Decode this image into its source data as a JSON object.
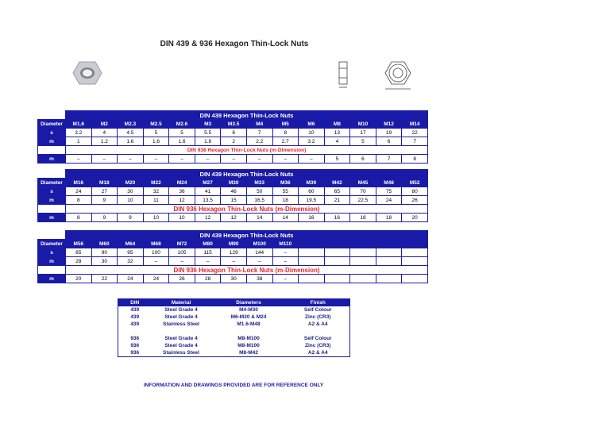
{
  "title": "DIN 439 & 936 Hexagon Thin-Lock Nuts",
  "tables": [
    {
      "title": "DIN 439 Hexagon Thin-Lock Nuts",
      "diameter_label": "Diameter",
      "diameters": [
        "M1.6",
        "M2",
        "M2.3",
        "M2.5",
        "M2.6",
        "M3",
        "M3.5",
        "M4",
        "M5",
        "M6",
        "M8",
        "M10",
        "M12",
        "M14"
      ],
      "rows": [
        {
          "label": "s",
          "values": [
            "3.2",
            "4",
            "4.5",
            "5",
            "5",
            "5.5",
            "6",
            "7",
            "8",
            "10",
            "13",
            "17",
            "19",
            "22"
          ]
        },
        {
          "label": "m",
          "values": [
            "1",
            "1.2",
            "1.6",
            "1.6",
            "1.6",
            "1.8",
            "2",
            "2.2",
            "2.7",
            "3.2",
            "4",
            "5",
            "6",
            "7"
          ]
        }
      ],
      "subtitle": "DIN 936 Hexagon Thin-Lock Nuts (m-Dimension)",
      "m936": {
        "label": "m",
        "values": [
          "–",
          "–",
          "–",
          "–",
          "–",
          "–",
          "–",
          "–",
          "–",
          "–",
          "5",
          "6",
          "7",
          "8"
        ]
      }
    },
    {
      "title": "DIN 439 Hexagon Thin-Lock Nuts",
      "diameter_label": "Diameter",
      "diameters": [
        "M16",
        "M18",
        "M20",
        "M22",
        "M24",
        "M27",
        "M30",
        "M33",
        "M36",
        "M39",
        "M42",
        "M45",
        "M48",
        "M52"
      ],
      "rows": [
        {
          "label": "s",
          "values": [
            "24",
            "27",
            "30",
            "32",
            "36",
            "41",
            "46",
            "50",
            "55",
            "60",
            "65",
            "70",
            "75",
            "80"
          ]
        },
        {
          "label": "m",
          "values": [
            "8",
            "9",
            "10",
            "11",
            "12",
            "13.5",
            "15",
            "16.5",
            "18",
            "19.5",
            "21",
            "22.5",
            "24",
            "26"
          ]
        }
      ],
      "subtitle": "DIN 936 Hexagon Thin-Lock Nuts (m-Dimension)",
      "m936": {
        "label": "m",
        "values": [
          "8",
          "9",
          "9",
          "10",
          "10",
          "12",
          "12",
          "14",
          "14",
          "16",
          "16",
          "18",
          "18",
          "20"
        ]
      }
    },
    {
      "title": "DIN 439 Hexagon Thin-Lock Nuts",
      "diameter_label": "Diameter",
      "diameters": [
        "M56",
        "M60",
        "M64",
        "M68",
        "M72",
        "M80",
        "M90",
        "M100",
        "M110"
      ],
      "rows": [
        {
          "label": "s",
          "values": [
            "85",
            "90",
            "95",
            "100",
            "105",
            "115",
            "129",
            "144",
            "–"
          ]
        },
        {
          "label": "m",
          "values": [
            "28",
            "30",
            "32",
            "–",
            "–",
            "–",
            "–",
            "–",
            "–"
          ]
        }
      ],
      "subtitle": "DIN 936 Hexagon Thin-Lock Nuts (m-Dimension)",
      "m936": {
        "label": "m",
        "values": [
          "20",
          "22",
          "24",
          "24",
          "26",
          "28",
          "30",
          "38",
          "–"
        ]
      }
    }
  ],
  "materials": {
    "headers": [
      "DIN",
      "Material",
      "Diameters",
      "Finish"
    ],
    "groups": [
      [
        [
          "439",
          "Steel Grade 4",
          "M4-M30",
          "Self Colour"
        ],
        [
          "439",
          "Steel Grade 4",
          "M6-M20 & M24",
          "Zinc (CR3)"
        ],
        [
          "439",
          "Stainless Steel",
          "M1.6-M48",
          "A2 & A4"
        ]
      ],
      [
        [
          "936",
          "Steel Grade 4",
          "M8-M100",
          "Self Colour"
        ],
        [
          "936",
          "Steel Grade 4",
          "M8-M100",
          "Zinc (CR3)"
        ],
        [
          "936",
          "Stainless Steel",
          "M8-M42",
          "A2 & A4"
        ]
      ]
    ]
  },
  "footer": "INFORMATION AND DRAWINGS PROVIDED ARE FOR REFERENCE ONLY"
}
